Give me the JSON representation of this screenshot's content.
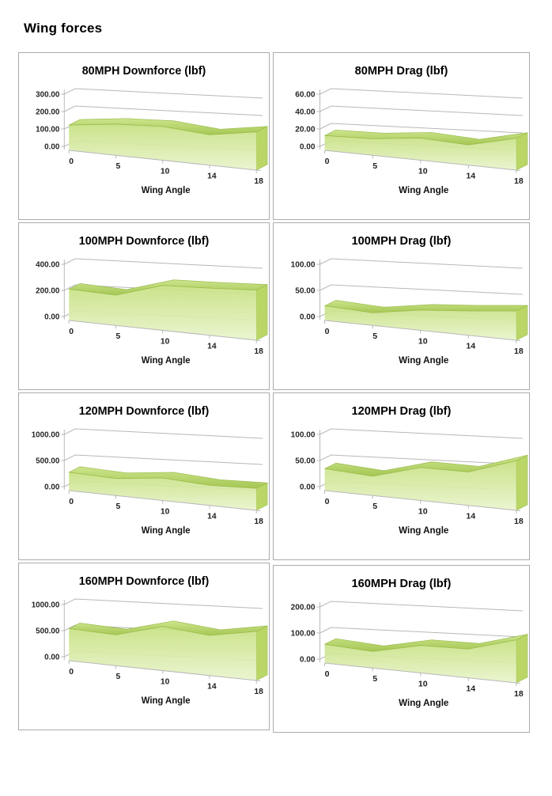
{
  "page": {
    "title": "Wing forces"
  },
  "colors": {
    "panel_border": "#ababab",
    "grid_line": "#b8b8b8",
    "axis_text": "#262626",
    "title_text": "#000000",
    "area_front_top": "#c7e182",
    "area_front_bottom": "#e9f4cd",
    "ribbon_dark": "#a5c753",
    "ribbon_light": "#cde58d",
    "cap_fill": "#b9d667",
    "edge_stroke": "#9cbd4e"
  },
  "chart_data": [
    {
      "type": "area",
      "title": "80MPH Downforce (lbf)",
      "xlabel": "Wing Angle",
      "categories": [
        "0",
        "5",
        "10",
        "14",
        "18"
      ],
      "values": [
        145,
        170,
        175,
        150,
        180
      ],
      "ymax": 300,
      "ylim": [
        0,
        300
      ],
      "yticks": [
        "300.00",
        "200.00",
        "100.00",
        "0.00"
      ],
      "grid": true,
      "legend": "none"
    },
    {
      "type": "area",
      "title": "80MPH Drag (lbf)",
      "xlabel": "Wing Angle",
      "categories": [
        "0",
        "5",
        "10",
        "14",
        "18"
      ],
      "values": [
        17,
        18,
        23,
        20,
        30
      ],
      "ymax": 60,
      "ylim": [
        0,
        60
      ],
      "yticks": [
        "60.00",
        "40.00",
        "20.00",
        "0.00"
      ],
      "grid": true,
      "legend": "none"
    },
    {
      "type": "area",
      "title": "100MPH Downforce (lbf)",
      "xlabel": "Wing Angle",
      "categories": [
        "0",
        "5",
        "10",
        "14",
        "18"
      ],
      "values": [
        240,
        220,
        310,
        310,
        315
      ],
      "ymax": 400,
      "ylim": [
        0,
        400
      ],
      "yticks": [
        "400.00",
        "200.00",
        "0.00"
      ],
      "grid": true,
      "legend": "none"
    },
    {
      "type": "area",
      "title": "100MPH Drag (lbf)",
      "xlabel": "Wing Angle",
      "categories": [
        "0",
        "5",
        "10",
        "14",
        "18"
      ],
      "values": [
        28,
        23,
        35,
        40,
        46
      ],
      "ymax": 100,
      "ylim": [
        0,
        100
      ],
      "yticks": [
        "100.00",
        "50.00",
        "0.00"
      ],
      "grid": true,
      "legend": "none"
    },
    {
      "type": "area",
      "title": "120MPH Downforce (lbf)",
      "xlabel": "Wing Angle",
      "categories": [
        "0",
        "5",
        "10",
        "14",
        "18"
      ],
      "values": [
        350,
        310,
        390,
        330,
        345
      ],
      "ymax": 1000,
      "ylim": [
        0,
        1000
      ],
      "yticks": [
        "1000.00",
        "500.00",
        "0.00"
      ],
      "grid": true,
      "legend": "none"
    },
    {
      "type": "area",
      "title": "120MPH Drag (lbf)",
      "xlabel": "Wing Angle",
      "categories": [
        "0",
        "5",
        "10",
        "14",
        "18"
      ],
      "values": [
        42,
        35,
        57,
        55,
        78
      ],
      "ymax": 100,
      "ylim": [
        0,
        100
      ],
      "yticks": [
        "100.00",
        "50.00",
        "0.00"
      ],
      "grid": true,
      "legend": "none"
    },
    {
      "type": "area",
      "title": "160MPH Downforce (lbf)",
      "xlabel": "Wing Angle",
      "categories": [
        "0",
        "5",
        "10",
        "14",
        "18"
      ],
      "values": [
        615,
        560,
        760,
        660,
        770
      ],
      "ymax": 1000,
      "ylim": [
        0,
        1000
      ],
      "yticks": [
        "1000.00",
        "500.00",
        "0.00"
      ],
      "grid": true,
      "legend": "none"
    },
    {
      "type": "area",
      "title": "160MPH Drag (lbf)",
      "xlabel": "Wing Angle",
      "categories": [
        "0",
        "5",
        "10",
        "14",
        "18"
      ],
      "values": [
        72,
        60,
        95,
        95,
        135
      ],
      "ymax": 200,
      "ylim": [
        0,
        200
      ],
      "yticks": [
        "200.00",
        "100.00",
        "0.00"
      ],
      "grid": true,
      "legend": "none"
    }
  ]
}
